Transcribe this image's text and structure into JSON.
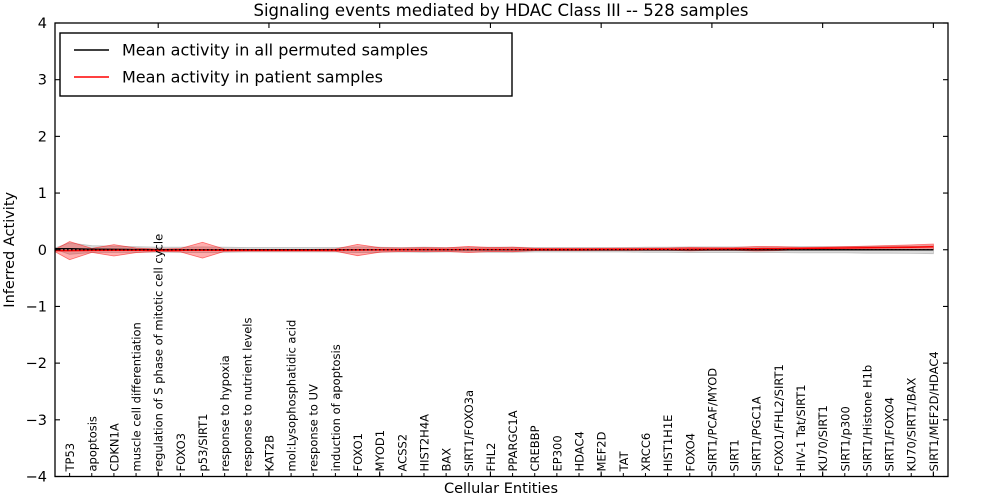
{
  "title": "Signaling events mediated by HDAC Class III -- 528 samples",
  "axes": {
    "xlabel": "Cellular Entities",
    "ylabel": "Inferred Activity",
    "ytick_labels": [
      "4",
      "3",
      "2",
      "1",
      "0",
      "−1",
      "−2",
      "−3",
      "−4"
    ],
    "ylim": [
      -4,
      4
    ]
  },
  "legend": {
    "entries": [
      {
        "label": "Mean activity in all permuted samples",
        "color": "#000000"
      },
      {
        "label": "Mean activity in patient samples",
        "color": "#ff0000"
      }
    ]
  },
  "chart_data": {
    "type": "line",
    "title": "Signaling events mediated by HDAC Class III -- 528 samples",
    "xlabel": "Cellular Entities",
    "ylabel": "Inferred Activity",
    "ylim": [
      -4,
      4
    ],
    "yticks": [
      -4,
      -3,
      -2,
      -1,
      0,
      1,
      2,
      3,
      4
    ],
    "grid": false,
    "legend_position": "upper left",
    "x_major_tick_every": 5,
    "categories": [
      "TP53",
      "apoptosis",
      "CDKN1A",
      "muscle cell differentiation",
      "regulation of S phase of mitotic cell cycle",
      "FOXO3",
      "p53/SIRT1",
      "response to hypoxia",
      "response to nutrient levels",
      "KAT2B",
      "mol:Lysophosphatidic acid",
      "response to UV",
      "induction of apoptosis",
      "FOXO1",
      "MYOD1",
      "ACSS2",
      "HIST2H4A",
      "BAX",
      "SIRT1/FOXO3a",
      "FHL2",
      "PPARGC1A",
      "CREBBP",
      "EP300",
      "HDAC4",
      "MEF2D",
      "TAT",
      "XRCC6",
      "HIST1H1E",
      "FOXO4",
      "SIRT1/PCAF/MYOD",
      "SIRT1",
      "SIRT1/PGC1A",
      "FOXO1/FHL2/SIRT1",
      "HIV-1 Tat/SIRT1",
      "KU70/SIRT1",
      "SIRT1/p300",
      "SIRT1/Histone H1b",
      "SIRT1/FOXO4",
      "KU70/SIRT1/BAX",
      "SIRT1/MEF2D/HDAC4"
    ],
    "series": [
      {
        "name": "Mean activity in all permuted samples",
        "color": "#000000",
        "values": [
          0.02,
          0.012,
          0.008,
          0.004,
          0.002,
          0,
          0,
          0,
          0,
          0,
          0,
          0,
          0,
          0,
          0,
          0,
          0,
          0,
          0,
          0,
          0,
          0,
          0,
          0,
          0,
          0,
          0,
          0,
          0,
          0,
          0,
          0,
          0,
          0,
          0,
          0,
          0,
          0,
          0,
          0
        ]
      },
      {
        "name": "Mean activity in patient samples",
        "color": "#ff0000",
        "values": [
          -0.015,
          -0.012,
          -0.01,
          -0.01,
          -0.008,
          -0.008,
          -0.008,
          -0.008,
          -0.008,
          -0.008,
          -0.008,
          -0.008,
          -0.006,
          -0.005,
          -0.003,
          0,
          0.002,
          0.003,
          0.004,
          0.005,
          0.005,
          0.005,
          0.005,
          0.005,
          0.006,
          0.007,
          0.008,
          0.01,
          0.012,
          0.013,
          0.015,
          0.018,
          0.02,
          0.022,
          0.025,
          0.03,
          0.035,
          0.04,
          0.045,
          0.052
        ]
      }
    ],
    "bands": [
      {
        "name": "permuted-sample-range",
        "center_series": 0,
        "color": "#999999",
        "fill_opacity": 0.35,
        "half_widths": [
          0.1,
          0.06,
          0.055,
          0.05,
          0.045,
          0.045,
          0.05,
          0.045,
          0.04,
          0.04,
          0.04,
          0.04,
          0.04,
          0.05,
          0.045,
          0.04,
          0.045,
          0.04,
          0.04,
          0.045,
          0.045,
          0.04,
          0.04,
          0.04,
          0.04,
          0.04,
          0.045,
          0.045,
          0.05,
          0.05,
          0.05,
          0.05,
          0.05,
          0.055,
          0.055,
          0.055,
          0.06,
          0.06,
          0.065,
          0.07
        ]
      },
      {
        "name": "patient-sample-range",
        "center_series": 1,
        "color": "#ff0000",
        "fill_opacity": 0.32,
        "half_widths": [
          0.16,
          0.035,
          0.1,
          0.04,
          0.02,
          0.03,
          0.14,
          0.02,
          0.015,
          0.015,
          0.015,
          0.015,
          0.02,
          0.1,
          0.04,
          0.03,
          0.035,
          0.03,
          0.055,
          0.035,
          0.04,
          0.02,
          0.02,
          0.02,
          0.02,
          0.02,
          0.02,
          0.02,
          0.03,
          0.025,
          0.025,
          0.04,
          0.035,
          0.02,
          0.02,
          0.025,
          0.03,
          0.035,
          0.04,
          0.05
        ]
      }
    ],
    "reference_line": {
      "y": 0,
      "style": "dotted",
      "color": "#000000"
    }
  }
}
